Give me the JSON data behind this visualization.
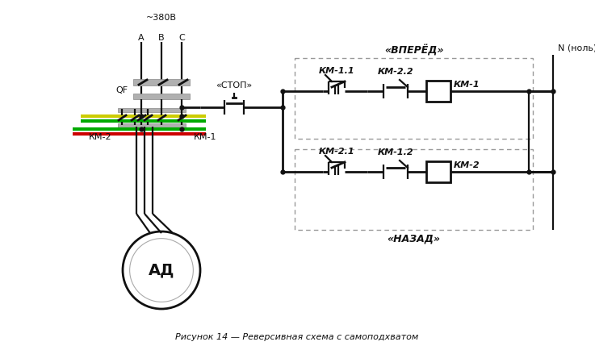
{
  "caption": "Рисунок 14 — Реверсивная схема с самоподхватом",
  "bg": "#ffffff",
  "lc": "#111111",
  "yellow": "#cccc00",
  "green": "#00aa00",
  "red": "#cc0000",
  "gray": "#b0b0b0",
  "dash": "#999999",
  "label_380": "~380В",
  "label_A": "A",
  "label_B": "B",
  "label_C": "C",
  "label_QF": "QF",
  "label_KM1p": "КМ-1",
  "label_KM2p": "КМ-2",
  "label_AD": "АД",
  "label_stop": "«СТОП»",
  "label_fwd": "«ВПЕРЁД»",
  "label_bwd": "«НАЗАД»",
  "label_N": "N (ноль)",
  "label_KM11": "КМ-1.1",
  "label_KM22": "КМ-2.2",
  "label_KM1c": "КМ-1",
  "label_KM21": "КМ-2.1",
  "label_KM12": "КМ-1.2",
  "label_KM2c": "КМ-2"
}
